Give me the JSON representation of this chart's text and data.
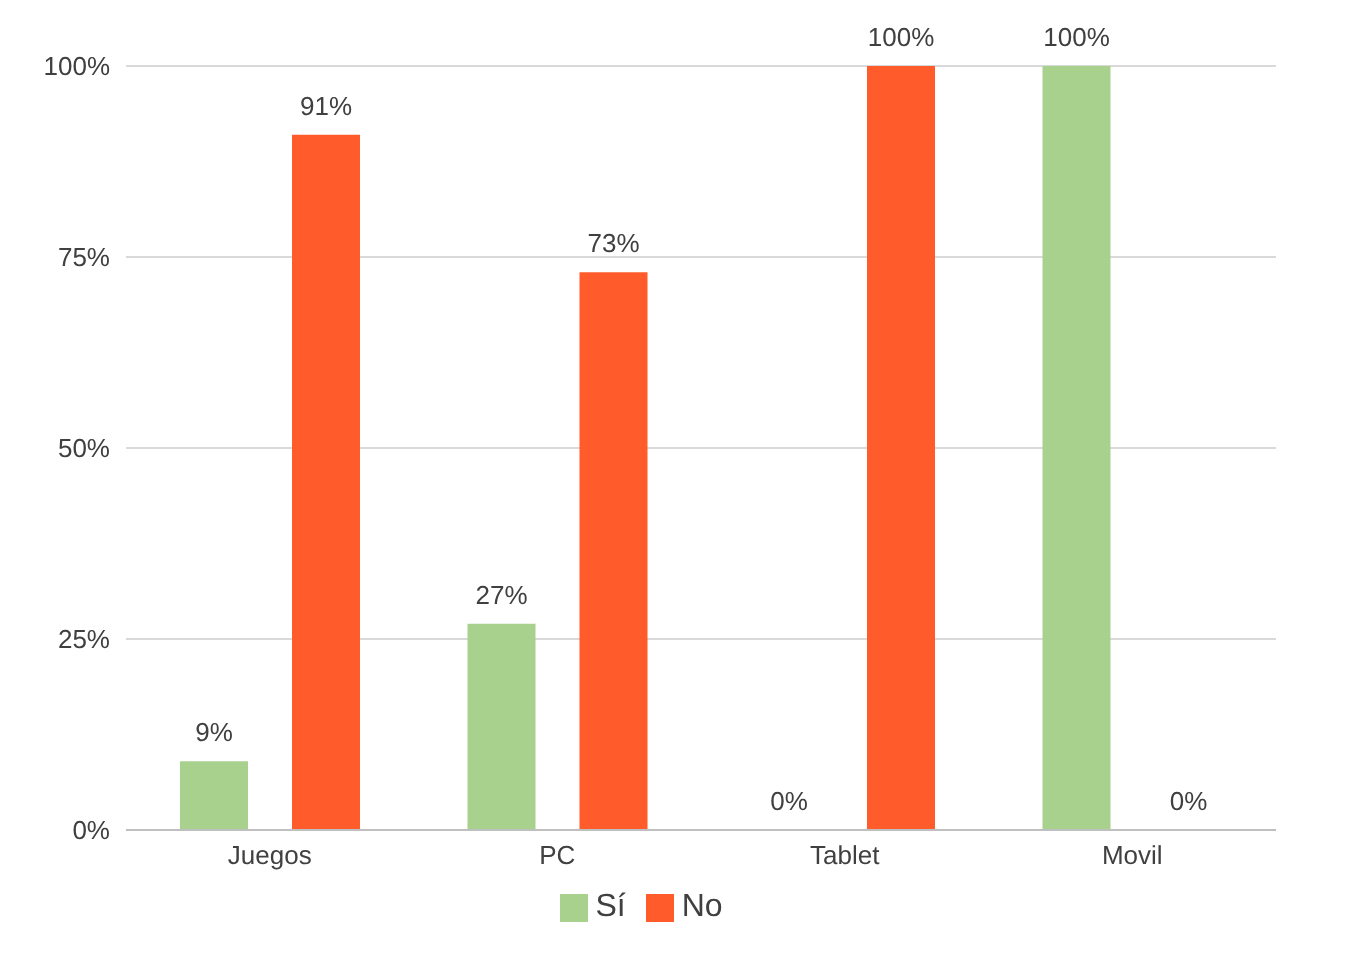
{
  "chart_data": {
    "type": "bar",
    "categories": [
      "Juegos",
      "PC",
      "Tablet",
      "Movil"
    ],
    "series": [
      {
        "name": "Sí",
        "color": "#a9d18e",
        "values": [
          9,
          27,
          0,
          100
        ],
        "value_labels": [
          "9%",
          "27%",
          "0%",
          "100%"
        ]
      },
      {
        "name": "No",
        "color": "#ff5b2b",
        "values": [
          91,
          73,
          100,
          0
        ],
        "value_labels": [
          "91%",
          "73%",
          "100%",
          "0%"
        ]
      }
    ],
    "ylim": [
      0,
      100
    ],
    "yticks": [
      {
        "value": 0,
        "label": "0%"
      },
      {
        "value": 25,
        "label": "25%"
      },
      {
        "value": 50,
        "label": "50%"
      },
      {
        "value": 75,
        "label": "75%"
      },
      {
        "value": 100,
        "label": "100%"
      }
    ],
    "grid": "y",
    "legend": "bottom"
  }
}
